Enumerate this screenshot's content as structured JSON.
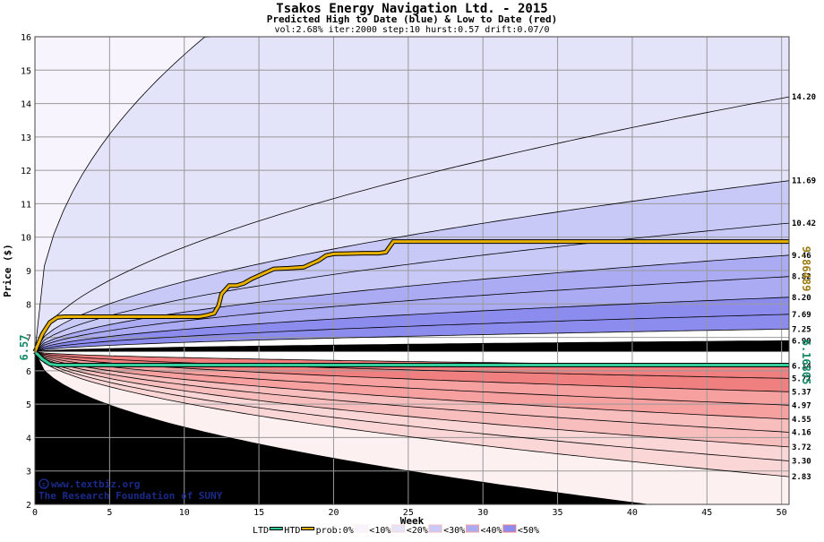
{
  "chart_data": {
    "type": "area",
    "title": "Tsakos Energy Navigation Ltd. - 2015",
    "subtitle": "Predicted High to Date (blue) &  Low to Date (red)",
    "params": "vol:2.68% iter:2000 step:10 hurst:0.57 drift:0.07/0",
    "xlabel": "Week",
    "ylabel": "Price ($)",
    "xlim": [
      0,
      50.5
    ],
    "ylim": [
      2,
      16
    ],
    "xticks": [
      0,
      5,
      10,
      15,
      20,
      25,
      30,
      35,
      40,
      45,
      50
    ],
    "yticks": [
      2,
      3,
      4,
      5,
      6,
      7,
      8,
      9,
      10,
      11,
      12,
      13,
      14,
      15,
      16
    ],
    "grid": true,
    "start_price": 6.57,
    "start_label": "6.57",
    "high_quantile_end_values": [
      14.2,
      11.69,
      10.42,
      9.46,
      8.82,
      8.2,
      7.69,
      7.25,
      6.9
    ],
    "high_quantile_end_labels": [
      "14.20",
      "11.69",
      "10.42",
      "9.46",
      "8.82",
      "8.20",
      "7.69",
      "7.25",
      "6.90"
    ],
    "low_quantile_end_values": [
      6.14,
      5.77,
      5.37,
      4.97,
      4.55,
      4.16,
      3.72,
      3.3,
      2.83
    ],
    "low_quantile_end_labels": [
      "6.14",
      "5.77",
      "5.37",
      "4.97",
      "4.55",
      "4.16",
      "3.72",
      "3.30",
      "2.83"
    ],
    "high_to_date": {
      "name": "HTD",
      "final_value": 9.86489,
      "final_label": "9.86489",
      "x": [
        0,
        0.5,
        1,
        1.5,
        2,
        3,
        5,
        7,
        9,
        11,
        11.5,
        12,
        12.3,
        12.5,
        13,
        13.5,
        14,
        14.5,
        15,
        15.5,
        16,
        17,
        18,
        18.5,
        19,
        19.5,
        20,
        22,
        23,
        23.5,
        24,
        26,
        30,
        35,
        40,
        45,
        50.5
      ],
      "y": [
        6.57,
        7.1,
        7.45,
        7.6,
        7.62,
        7.62,
        7.62,
        7.62,
        7.62,
        7.62,
        7.66,
        7.72,
        7.95,
        8.3,
        8.55,
        8.55,
        8.62,
        8.75,
        8.85,
        8.95,
        9.05,
        9.07,
        9.1,
        9.2,
        9.3,
        9.45,
        9.5,
        9.52,
        9.52,
        9.55,
        9.87,
        9.87,
        9.87,
        9.87,
        9.87,
        9.87,
        9.87
      ]
    },
    "low_to_date": {
      "name": "LTD",
      "final_value": 6.16805,
      "final_label": "6.16805",
      "x": [
        0,
        0.5,
        1,
        1.5,
        2,
        10,
        25,
        50.5
      ],
      "y": [
        6.57,
        6.35,
        6.2,
        6.17,
        6.17,
        6.17,
        6.17,
        6.17
      ]
    },
    "legend": {
      "ltd": "LTD",
      "htd": "HTD",
      "prob": "prob:0%",
      "b1": "<10%",
      "b2": "<20%",
      "b3": "<30%",
      "b4": "<40%",
      "b5": "<50%"
    },
    "watermark_lines": [
      "www.textbiz.org",
      "The Research Foundation of SUNY"
    ]
  },
  "colors": {
    "htd": "#e8b000",
    "ltd": "#33cc99",
    "htd_label": "#9a7a10",
    "ltd_label": "#118866",
    "band1": "#f7f4fd",
    "band2": "#e3e3fa",
    "band3": "#c9c9f7",
    "band4": "#ababf3",
    "band5": "#8c8cee",
    "red1": "#fdf0f0",
    "red2": "#fbd6d6",
    "red3": "#f8bdbd",
    "red4": "#f6a0a0",
    "red5": "#f08080"
  }
}
